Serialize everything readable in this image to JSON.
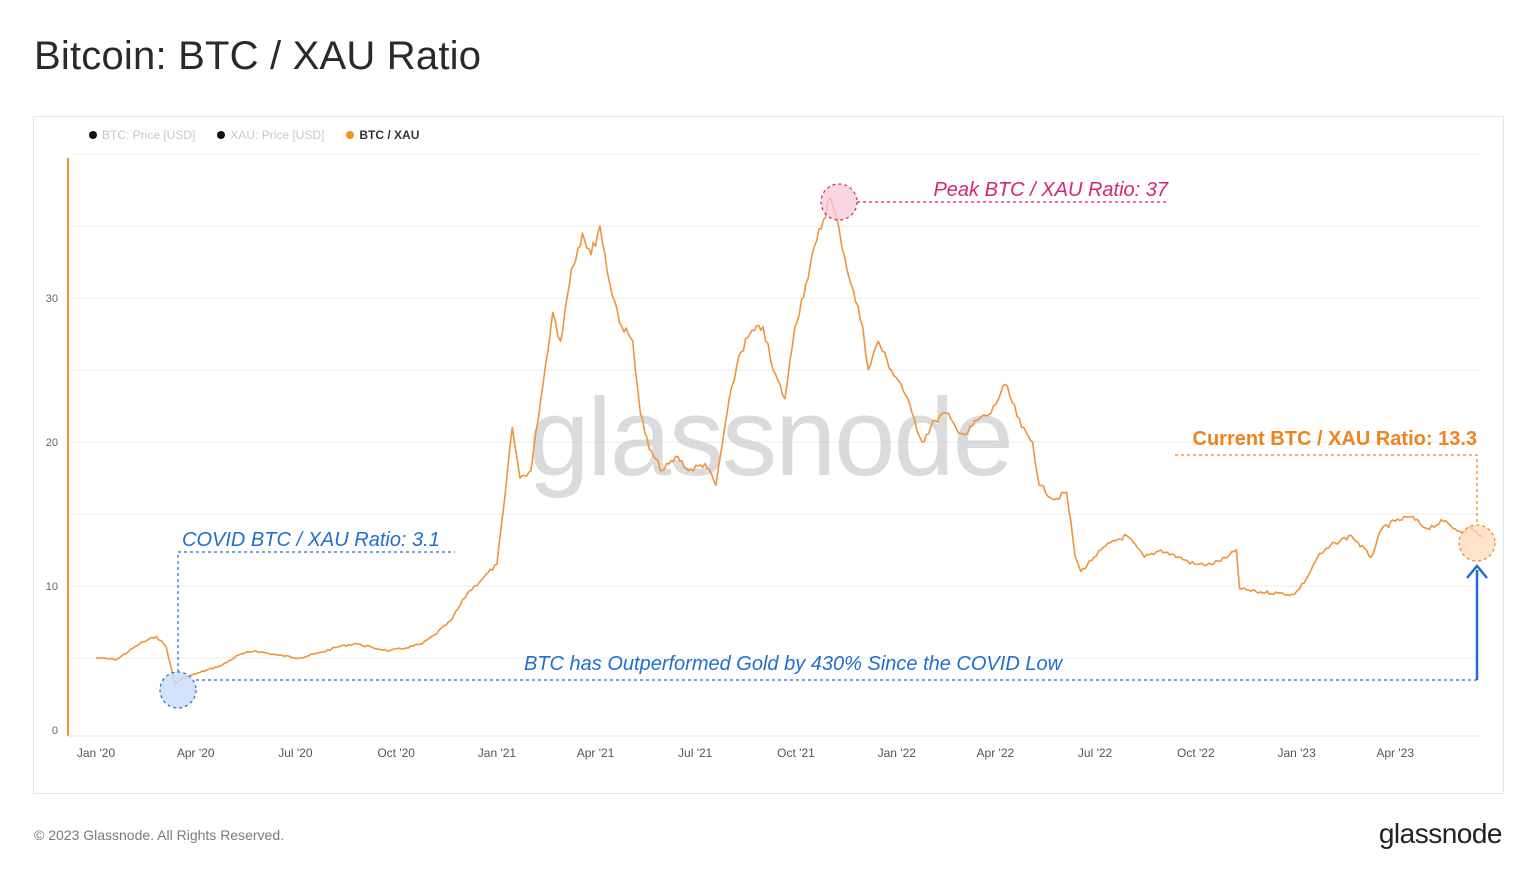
{
  "page": {
    "title": "Bitcoin: BTC / XAU Ratio",
    "copyright": "© 2023 Glassnode. All Rights Reserved.",
    "brand": "glassnode",
    "watermark": "glassnode"
  },
  "legend": [
    {
      "label": "BTC: Price [USD]",
      "color": "#111111",
      "active": false
    },
    {
      "label": "XAU: Price [USD]",
      "color": "#111111",
      "active": false
    },
    {
      "label": "BTC / XAU",
      "color": "#f7931a",
      "active": true
    }
  ],
  "annotations": {
    "peak": "Peak BTC / XAU Ratio: 37",
    "current": "Current BTC / XAU Ratio: 13.3",
    "covid": "COVID BTC / XAU Ratio: 3.1",
    "outperform": "BTC has Outperformed Gold by 430% Since the COVID Low"
  },
  "colors": {
    "line": "#f0943a",
    "peak": "#d6246e",
    "current": "#f0821f",
    "covid": "#1f6fd0",
    "axis": "#f0943a"
  },
  "chart_data": {
    "type": "line",
    "ylim": [
      0,
      40
    ],
    "y_ticks": [
      "0",
      "10",
      "20",
      "30"
    ],
    "x_ticks": [
      "Jan '20",
      "Apr '20",
      "Jul '20",
      "Oct '20",
      "Jan '21",
      "Apr '21",
      "Jul '21",
      "Oct '21",
      "Jan '22",
      "Apr '22",
      "Jul '22",
      "Oct '22",
      "Jan '23",
      "Apr '23"
    ],
    "series": [
      {
        "name": "BTC / XAU",
        "x": [
          "2020-01-01",
          "2020-01-20",
          "2020-02-10",
          "2020-02-25",
          "2020-03-05",
          "2020-03-13",
          "2020-03-20",
          "2020-04-05",
          "2020-04-25",
          "2020-05-10",
          "2020-05-25",
          "2020-06-15",
          "2020-07-05",
          "2020-07-25",
          "2020-08-10",
          "2020-08-25",
          "2020-09-10",
          "2020-09-25",
          "2020-10-10",
          "2020-10-25",
          "2020-11-05",
          "2020-11-20",
          "2020-12-05",
          "2020-12-20",
          "2021-01-01",
          "2021-01-08",
          "2021-01-15",
          "2021-01-22",
          "2021-02-01",
          "2021-02-10",
          "2021-02-21",
          "2021-02-28",
          "2021-03-10",
          "2021-03-20",
          "2021-03-28",
          "2021-04-05",
          "2021-04-14",
          "2021-04-25",
          "2021-05-05",
          "2021-05-12",
          "2021-05-20",
          "2021-06-01",
          "2021-06-15",
          "2021-06-25",
          "2021-07-10",
          "2021-07-20",
          "2021-07-30",
          "2021-08-10",
          "2021-08-20",
          "2021-09-01",
          "2021-09-10",
          "2021-09-21",
          "2021-09-30",
          "2021-10-10",
          "2021-10-20",
          "2021-11-01",
          "2021-11-10",
          "2021-11-20",
          "2021-12-01",
          "2021-12-06",
          "2021-12-15",
          "2021-12-27",
          "2022-01-05",
          "2022-01-15",
          "2022-01-24",
          "2022-02-05",
          "2022-02-15",
          "2022-02-24",
          "2022-03-05",
          "2022-03-15",
          "2022-03-28",
          "2022-04-10",
          "2022-04-25",
          "2022-05-05",
          "2022-05-11",
          "2022-05-25",
          "2022-06-05",
          "2022-06-13",
          "2022-06-18",
          "2022-06-30",
          "2022-07-15",
          "2022-07-30",
          "2022-08-15",
          "2022-08-30",
          "2022-09-15",
          "2022-09-30",
          "2022-10-15",
          "2022-10-30",
          "2022-11-07",
          "2022-11-10",
          "2022-11-25",
          "2022-12-15",
          "2022-12-30",
          "2023-01-10",
          "2023-01-20",
          "2023-02-05",
          "2023-02-20",
          "2023-03-10",
          "2023-03-20",
          "2023-04-01",
          "2023-04-15",
          "2023-04-30",
          "2023-05-15",
          "2023-05-30",
          "2023-06-10",
          "2023-06-20"
        ],
        "values": [
          5.0,
          4.9,
          6.0,
          6.5,
          5.8,
          3.2,
          3.6,
          4.0,
          4.5,
          5.2,
          5.5,
          5.2,
          5.0,
          5.4,
          5.8,
          6.0,
          5.7,
          5.5,
          5.7,
          6.0,
          6.6,
          7.6,
          9.5,
          10.6,
          11.5,
          16.0,
          21.0,
          17.5,
          18.0,
          23.0,
          29.0,
          27.0,
          32.0,
          34.5,
          33.0,
          35.0,
          31.0,
          28.0,
          27.0,
          22.0,
          19.5,
          18.0,
          19.0,
          18.0,
          18.5,
          17.0,
          22.0,
          26.0,
          27.5,
          28.0,
          25.0,
          23.0,
          28.0,
          31.0,
          34.0,
          37.0,
          34.5,
          31.0,
          28.0,
          25.0,
          27.0,
          25.0,
          24.0,
          22.0,
          20.0,
          21.5,
          22.0,
          21.0,
          20.5,
          21.5,
          22.0,
          24.0,
          21.0,
          20.0,
          17.0,
          16.0,
          16.5,
          12.0,
          11.0,
          12.0,
          13.0,
          13.5,
          12.0,
          12.5,
          12.0,
          11.5,
          11.5,
          12.0,
          12.5,
          9.8,
          9.6,
          9.5,
          9.4,
          10.5,
          12.0,
          13.0,
          13.5,
          12.0,
          14.0,
          14.5,
          14.8,
          14.0,
          14.5,
          13.8,
          14.0,
          13.3
        ]
      }
    ]
  }
}
